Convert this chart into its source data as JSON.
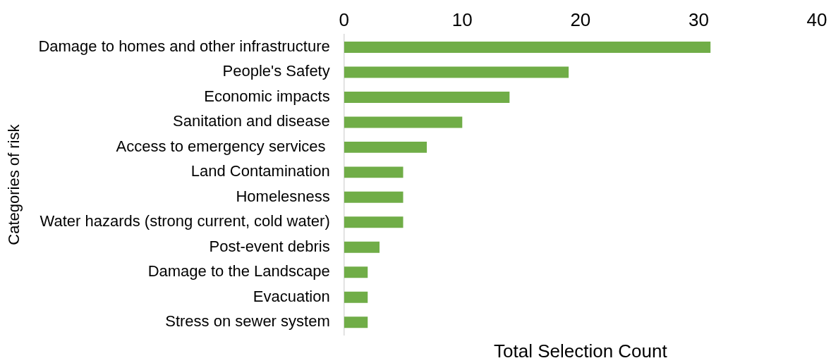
{
  "chart_data": {
    "type": "bar",
    "orientation": "horizontal",
    "xlabel": "Total Selection Count",
    "ylabel": "Categories of risk",
    "categories": [
      "Damage to homes and other infrastructure",
      "People's Safety",
      "Economic impacts",
      "Sanitation and disease",
      "Access to emergency services ",
      "Land Contamination",
      "Homelesness",
      "Water hazards (strong current, cold water)",
      "Post-event debris",
      "Damage to the Landscape",
      "Evacuation",
      "Stress on sewer system"
    ],
    "values": [
      31,
      19,
      14,
      10,
      7,
      5,
      5,
      5,
      3,
      2,
      2,
      2
    ],
    "color": "#70ad47",
    "xlim": [
      0,
      40
    ],
    "xticks": [
      0,
      10,
      20,
      30,
      40
    ]
  }
}
